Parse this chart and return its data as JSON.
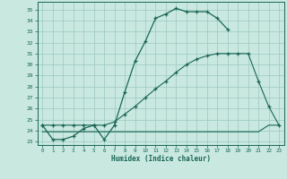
{
  "bg_color": "#c8e8e0",
  "line_color": "#1a6655",
  "grid_color": "#9cc8c0",
  "xlabel": "Humidex (Indice chaleur)",
  "xlim": [
    -0.5,
    23.5
  ],
  "ylim": [
    22.7,
    35.7
  ],
  "xticks": [
    0,
    1,
    2,
    3,
    4,
    5,
    6,
    7,
    8,
    9,
    10,
    11,
    12,
    13,
    14,
    15,
    16,
    17,
    18,
    19,
    20,
    21,
    22,
    23
  ],
  "yticks": [
    23,
    24,
    25,
    26,
    27,
    28,
    29,
    30,
    31,
    32,
    33,
    34,
    35
  ],
  "line1_x": [
    0,
    1,
    2,
    3,
    4,
    5,
    6,
    7,
    8,
    9,
    10,
    11,
    12,
    13,
    14,
    15,
    16,
    17,
    18
  ],
  "line1_y": [
    24.5,
    23.2,
    23.2,
    23.5,
    24.2,
    24.5,
    23.2,
    24.5,
    27.5,
    30.3,
    32.1,
    34.2,
    34.6,
    35.1,
    34.8,
    34.8,
    34.8,
    34.2,
    33.2
  ],
  "line2_x": [
    0,
    1,
    2,
    3,
    4,
    5,
    6,
    7,
    8,
    9,
    10,
    11,
    12,
    13,
    14,
    15,
    16,
    17,
    18,
    19,
    20,
    21,
    22,
    23
  ],
  "line2_y": [
    23.9,
    23.9,
    23.9,
    23.9,
    23.9,
    23.9,
    23.9,
    23.9,
    23.9,
    23.9,
    23.9,
    23.9,
    23.9,
    23.9,
    23.9,
    23.9,
    23.9,
    23.9,
    23.9,
    23.9,
    23.9,
    23.9,
    24.5,
    24.5
  ],
  "line3_x": [
    0,
    1,
    2,
    3,
    4,
    5,
    6,
    7,
    8,
    9,
    10,
    11,
    12,
    13,
    14,
    15,
    16,
    17,
    18,
    19,
    20,
    21,
    22,
    23
  ],
  "line3_y": [
    24.5,
    24.5,
    24.5,
    24.5,
    24.5,
    24.5,
    24.5,
    24.8,
    25.5,
    26.2,
    27.0,
    27.8,
    28.5,
    29.3,
    30.0,
    30.5,
    30.8,
    31.0,
    31.0,
    31.0,
    31.0,
    28.5,
    26.2,
    24.5
  ]
}
